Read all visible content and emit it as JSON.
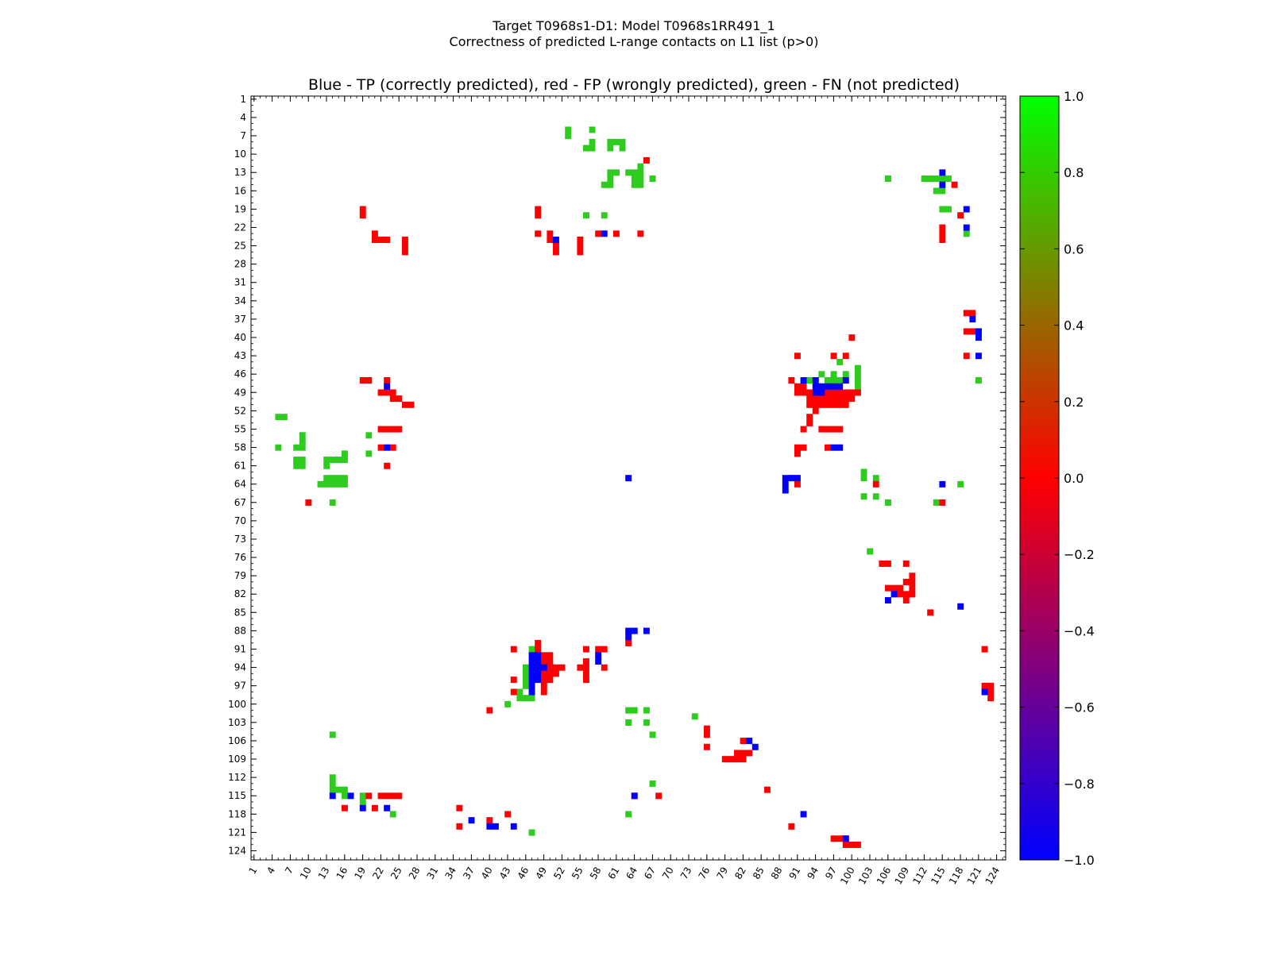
{
  "page": {
    "title_line1": "Target T0968s1-D1: Model T0968s1RR491_1",
    "title_line2": "Correctness of predicted L-range contacts on L1 list (p>0)"
  },
  "chart_data": {
    "type": "heatmap",
    "title": "Blue - TP (correctly predicted), red - FP (wrongly predicted), green - FN (not predicted)",
    "x_range": [
      1,
      125
    ],
    "y_range": [
      1,
      125
    ],
    "y_inverted": true,
    "x_ticks": [
      "1",
      "4",
      "7",
      "10",
      "13",
      "16",
      "19",
      "22",
      "25",
      "28",
      "31",
      "34",
      "37",
      "40",
      "43",
      "46",
      "49",
      "52",
      "55",
      "58",
      "61",
      "64",
      "67",
      "70",
      "73",
      "76",
      "79",
      "82",
      "85",
      "88",
      "91",
      "94",
      "97",
      "100",
      "103",
      "106",
      "109",
      "112",
      "115",
      "118",
      "121",
      "124"
    ],
    "y_ticks": [
      "1",
      "4",
      "7",
      "10",
      "13",
      "16",
      "19",
      "22",
      "25",
      "28",
      "31",
      "34",
      "37",
      "40",
      "43",
      "46",
      "49",
      "52",
      "55",
      "58",
      "61",
      "64",
      "67",
      "70",
      "73",
      "76",
      "79",
      "82",
      "85",
      "88",
      "91",
      "94",
      "97",
      "100",
      "103",
      "106",
      "109",
      "112",
      "115",
      "118",
      "121",
      "124"
    ],
    "colorbar": {
      "min": -1.0,
      "max": 1.0,
      "ticks": [
        "1.0",
        "0.8",
        "0.6",
        "0.4",
        "0.2",
        "0.0",
        "−0.2",
        "−0.4",
        "−0.6",
        "−0.8",
        "−1.0"
      ],
      "gradient_colors": [
        "#0000ff",
        "#ff0000",
        "#00ff00"
      ]
    },
    "cell_colors": {
      "tp": "#0000ff",
      "fp": "#ff0000",
      "fn": "#2ecc1f"
    },
    "tp": [
      [
        63,
        88
      ],
      [
        64,
        88
      ],
      [
        66,
        88
      ],
      [
        63,
        89
      ],
      [
        115,
        13
      ],
      [
        115,
        15
      ],
      [
        119,
        19
      ],
      [
        119,
        22
      ],
      [
        51,
        24
      ],
      [
        59,
        23
      ],
      [
        63,
        63
      ],
      [
        120,
        37
      ],
      [
        121,
        39
      ],
      [
        121,
        40
      ],
      [
        121,
        43
      ],
      [
        92,
        47
      ],
      [
        94,
        47
      ],
      [
        94,
        48
      ],
      [
        95,
        48
      ],
      [
        96,
        48
      ],
      [
        97,
        48
      ],
      [
        98,
        48
      ],
      [
        99,
        47
      ],
      [
        94,
        49
      ],
      [
        95,
        49
      ],
      [
        97,
        58
      ],
      [
        98,
        58
      ],
      [
        89,
        63
      ],
      [
        90,
        63
      ],
      [
        91,
        63
      ],
      [
        89,
        64
      ],
      [
        89,
        65
      ],
      [
        115,
        64
      ],
      [
        47,
        92
      ],
      [
        48,
        92
      ],
      [
        47,
        93
      ],
      [
        48,
        93
      ],
      [
        47,
        94
      ],
      [
        48,
        94
      ],
      [
        49,
        94
      ],
      [
        47,
        95
      ],
      [
        48,
        95
      ],
      [
        47,
        96
      ],
      [
        48,
        96
      ],
      [
        47,
        97
      ],
      [
        47,
        98
      ],
      [
        58,
        92
      ],
      [
        58,
        93
      ],
      [
        64,
        115
      ],
      [
        14,
        115
      ],
      [
        17,
        115
      ],
      [
        23,
        48
      ],
      [
        23,
        58
      ],
      [
        19,
        117
      ],
      [
        23,
        117
      ],
      [
        37,
        119
      ],
      [
        40,
        120
      ],
      [
        41,
        120
      ],
      [
        44,
        120
      ],
      [
        107,
        82
      ],
      [
        106,
        83
      ],
      [
        118,
        84
      ],
      [
        92,
        118
      ],
      [
        99,
        122
      ],
      [
        122,
        98
      ],
      [
        83,
        106
      ],
      [
        84,
        107
      ]
    ],
    "fp": [
      [
        48,
        91
      ],
      [
        48,
        92
      ],
      [
        49,
        92
      ],
      [
        50,
        92
      ],
      [
        49,
        93
      ],
      [
        50,
        93
      ],
      [
        49,
        94
      ],
      [
        50,
        94
      ],
      [
        51,
        94
      ],
      [
        52,
        94
      ],
      [
        49,
        95
      ],
      [
        50,
        95
      ],
      [
        51,
        95
      ],
      [
        49,
        96
      ],
      [
        50,
        96
      ],
      [
        49,
        97
      ],
      [
        49,
        98
      ],
      [
        44,
        91
      ],
      [
        56,
        91
      ],
      [
        58,
        91
      ],
      [
        59,
        91
      ],
      [
        56,
        93
      ],
      [
        56,
        94
      ],
      [
        55,
        94
      ],
      [
        56,
        95
      ],
      [
        56,
        96
      ],
      [
        59,
        94
      ],
      [
        44,
        96
      ],
      [
        44,
        98
      ],
      [
        40,
        101
      ],
      [
        63,
        90
      ],
      [
        76,
        104
      ],
      [
        76,
        105
      ],
      [
        76,
        107
      ],
      [
        82,
        106
      ],
      [
        81,
        108
      ],
      [
        82,
        108
      ],
      [
        83,
        108
      ],
      [
        81,
        109
      ],
      [
        82,
        109
      ],
      [
        79,
        109
      ],
      [
        80,
        109
      ],
      [
        86,
        114
      ],
      [
        64,
        115
      ],
      [
        68,
        115
      ],
      [
        16,
        117
      ],
      [
        21,
        117
      ],
      [
        20,
        115
      ],
      [
        22,
        115
      ],
      [
        23,
        115
      ],
      [
        24,
        115
      ],
      [
        25,
        115
      ],
      [
        35,
        117
      ],
      [
        35,
        120
      ],
      [
        40,
        119
      ],
      [
        43,
        118
      ],
      [
        90,
        120
      ],
      [
        97,
        122
      ],
      [
        98,
        122
      ],
      [
        99,
        122
      ],
      [
        99,
        123
      ],
      [
        100,
        123
      ],
      [
        101,
        123
      ],
      [
        122,
        97
      ],
      [
        123,
        97
      ],
      [
        123,
        98
      ],
      [
        123,
        99
      ],
      [
        122,
        91
      ],
      [
        121,
        39
      ],
      [
        120,
        39
      ],
      [
        119,
        39
      ],
      [
        119,
        43
      ],
      [
        120,
        36
      ],
      [
        119,
        36
      ],
      [
        105,
        77
      ],
      [
        106,
        77
      ],
      [
        109,
        77
      ],
      [
        106,
        81
      ],
      [
        107,
        81
      ],
      [
        108,
        81
      ],
      [
        109,
        80
      ],
      [
        108,
        82
      ],
      [
        109,
        82
      ],
      [
        110,
        79
      ],
      [
        110,
        80
      ],
      [
        110,
        81
      ],
      [
        110,
        82
      ],
      [
        109,
        83
      ],
      [
        113,
        85
      ],
      [
        91,
        43
      ],
      [
        97,
        43
      ],
      [
        99,
        43
      ],
      [
        90,
        47
      ],
      [
        91,
        48
      ],
      [
        92,
        48
      ],
      [
        91,
        49
      ],
      [
        92,
        49
      ],
      [
        93,
        49
      ],
      [
        96,
        49
      ],
      [
        97,
        49
      ],
      [
        98,
        49
      ],
      [
        99,
        49
      ],
      [
        100,
        49
      ],
      [
        101,
        49
      ],
      [
        93,
        50
      ],
      [
        94,
        50
      ],
      [
        95,
        50
      ],
      [
        96,
        50
      ],
      [
        97,
        50
      ],
      [
        98,
        50
      ],
      [
        99,
        50
      ],
      [
        100,
        50
      ],
      [
        93,
        51
      ],
      [
        94,
        51
      ],
      [
        95,
        51
      ],
      [
        96,
        51
      ],
      [
        97,
        51
      ],
      [
        98,
        51
      ],
      [
        99,
        51
      ],
      [
        94,
        52
      ],
      [
        93,
        53
      ],
      [
        93,
        54
      ],
      [
        92,
        55
      ],
      [
        95,
        55
      ],
      [
        96,
        55
      ],
      [
        97,
        55
      ],
      [
        98,
        55
      ],
      [
        91,
        58
      ],
      [
        92,
        58
      ],
      [
        91,
        59
      ],
      [
        96,
        58
      ],
      [
        91,
        64
      ],
      [
        100,
        40
      ],
      [
        104,
        64
      ],
      [
        115,
        67
      ],
      [
        19,
        19
      ],
      [
        19,
        20
      ],
      [
        21,
        23
      ],
      [
        21,
        24
      ],
      [
        22,
        24
      ],
      [
        23,
        24
      ],
      [
        26,
        24
      ],
      [
        26,
        25
      ],
      [
        26,
        26
      ],
      [
        19,
        47
      ],
      [
        20,
        47
      ],
      [
        23,
        47
      ],
      [
        22,
        49
      ],
      [
        23,
        49
      ],
      [
        24,
        49
      ],
      [
        24,
        50
      ],
      [
        25,
        50
      ],
      [
        26,
        51
      ],
      [
        27,
        51
      ],
      [
        22,
        55
      ],
      [
        23,
        55
      ],
      [
        24,
        55
      ],
      [
        25,
        55
      ],
      [
        22,
        58
      ],
      [
        24,
        58
      ],
      [
        23,
        61
      ],
      [
        10,
        67
      ],
      [
        55,
        24
      ],
      [
        55,
        25
      ],
      [
        55,
        26
      ],
      [
        58,
        23
      ],
      [
        61,
        23
      ],
      [
        65,
        23
      ],
      [
        66,
        11
      ],
      [
        115,
        22
      ],
      [
        115,
        23
      ],
      [
        115,
        24
      ],
      [
        117,
        15
      ],
      [
        118,
        20
      ],
      [
        48,
        90
      ],
      [
        48,
        19
      ],
      [
        48,
        20
      ],
      [
        48,
        23
      ],
      [
        50,
        23
      ],
      [
        50,
        24
      ],
      [
        51,
        25
      ],
      [
        51,
        26
      ]
    ],
    "fn": [
      [
        53,
        6
      ],
      [
        53,
        7
      ],
      [
        57,
        6
      ],
      [
        56,
        9
      ],
      [
        57,
        9
      ],
      [
        57,
        8
      ],
      [
        60,
        8
      ],
      [
        60,
        9
      ],
      [
        61,
        8
      ],
      [
        62,
        8
      ],
      [
        63,
        13
      ],
      [
        64,
        13
      ],
      [
        64,
        14
      ],
      [
        64,
        15
      ],
      [
        65,
        12
      ],
      [
        65,
        13
      ],
      [
        65,
        14
      ],
      [
        65,
        15
      ],
      [
        62,
        9
      ],
      [
        60,
        13
      ],
      [
        61,
        13
      ],
      [
        60,
        14
      ],
      [
        60,
        15
      ],
      [
        59,
        15
      ],
      [
        67,
        14
      ],
      [
        56,
        20
      ],
      [
        59,
        20
      ],
      [
        106,
        14
      ],
      [
        112,
        14
      ],
      [
        113,
        14
      ],
      [
        114,
        14
      ],
      [
        115,
        14
      ],
      [
        116,
        14
      ],
      [
        114,
        16
      ],
      [
        115,
        16
      ],
      [
        115,
        19
      ],
      [
        116,
        19
      ],
      [
        121,
        47
      ],
      [
        98,
        44
      ],
      [
        95,
        46
      ],
      [
        97,
        46
      ],
      [
        99,
        46
      ],
      [
        93,
        47
      ],
      [
        94,
        47
      ],
      [
        96,
        47
      ],
      [
        97,
        47
      ],
      [
        98,
        47
      ],
      [
        99,
        47
      ],
      [
        101,
        45
      ],
      [
        101,
        46
      ],
      [
        101,
        47
      ],
      [
        101,
        48
      ],
      [
        119,
        23
      ],
      [
        5,
        53
      ],
      [
        6,
        53
      ],
      [
        5,
        58
      ],
      [
        8,
        58
      ],
      [
        9,
        58
      ],
      [
        9,
        57
      ],
      [
        9,
        56
      ],
      [
        8,
        60
      ],
      [
        9,
        60
      ],
      [
        8,
        61
      ],
      [
        9,
        61
      ],
      [
        13,
        60
      ],
      [
        14,
        60
      ],
      [
        15,
        60
      ],
      [
        16,
        60
      ],
      [
        16,
        59
      ],
      [
        13,
        61
      ],
      [
        13,
        63
      ],
      [
        14,
        63
      ],
      [
        15,
        63
      ],
      [
        16,
        63
      ],
      [
        12,
        64
      ],
      [
        13,
        64
      ],
      [
        14,
        64
      ],
      [
        15,
        64
      ],
      [
        16,
        64
      ],
      [
        14,
        67
      ],
      [
        20,
        56
      ],
      [
        20,
        59
      ],
      [
        102,
        62
      ],
      [
        102,
        63
      ],
      [
        104,
        63
      ],
      [
        104,
        66
      ],
      [
        102,
        66
      ],
      [
        106,
        67
      ],
      [
        114,
        67
      ],
      [
        103,
        75
      ],
      [
        118,
        64
      ],
      [
        47,
        91
      ],
      [
        47,
        92
      ],
      [
        46,
        94
      ],
      [
        47,
        94
      ],
      [
        46,
        95
      ],
      [
        46,
        96
      ],
      [
        47,
        96
      ],
      [
        46,
        97
      ],
      [
        45,
        99
      ],
      [
        46,
        99
      ],
      [
        47,
        99
      ],
      [
        45,
        98
      ],
      [
        43,
        100
      ],
      [
        63,
        101
      ],
      [
        64,
        101
      ],
      [
        66,
        101
      ],
      [
        63,
        103
      ],
      [
        66,
        103
      ],
      [
        67,
        105
      ],
      [
        74,
        102
      ],
      [
        14,
        105
      ],
      [
        14,
        112
      ],
      [
        14,
        113
      ],
      [
        14,
        114
      ],
      [
        15,
        114
      ],
      [
        16,
        114
      ],
      [
        16,
        115
      ],
      [
        19,
        115
      ],
      [
        19,
        116
      ],
      [
        24,
        118
      ],
      [
        63,
        118
      ],
      [
        67,
        113
      ],
      [
        47,
        121
      ]
    ]
  }
}
